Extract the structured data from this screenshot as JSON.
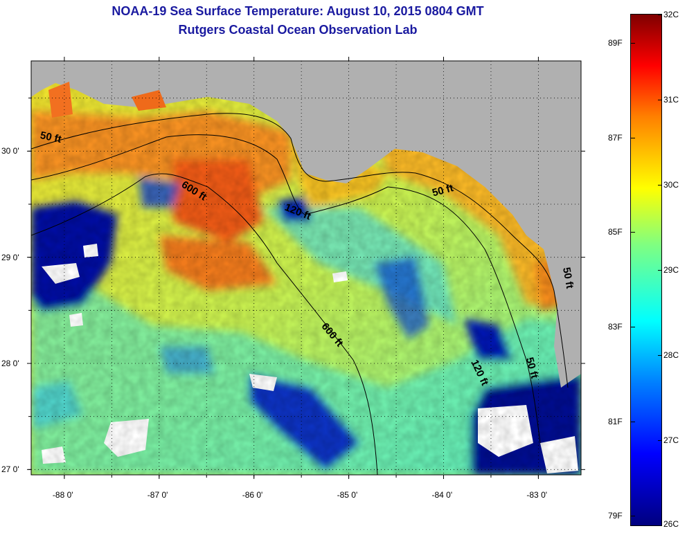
{
  "title": "NOAA-19 Sea Surface Temperature:  August 10, 2015 0804 GMT",
  "subtitle": "Rutgers Coastal Ocean Observation Lab",
  "map": {
    "lon_range": [
      -88.35,
      -82.55
    ],
    "lat_range": [
      26.95,
      30.85
    ],
    "x_ticks": [
      {
        "value": -88,
        "label": "-88 0'"
      },
      {
        "value": -87,
        "label": "-87 0'"
      },
      {
        "value": -86,
        "label": "-86 0'"
      },
      {
        "value": -85,
        "label": "-85 0'"
      },
      {
        "value": -84,
        "label": "-84 0'"
      },
      {
        "value": -83,
        "label": "-83 0'"
      }
    ],
    "y_ticks": [
      {
        "value": 30,
        "label": "30 0'"
      },
      {
        "value": 29,
        "label": "29 0'"
      },
      {
        "value": 28,
        "label": "28 0'"
      },
      {
        "value": 27,
        "label": "27 0'"
      }
    ],
    "grid": true,
    "land_color": "#b0b0b0",
    "contour_labels": [
      {
        "text": "50 ft",
        "lon": -88.15,
        "lat": 30.1,
        "angle": 12
      },
      {
        "text": "600 ft",
        "lon": -86.65,
        "lat": 29.6,
        "angle": 32
      },
      {
        "text": "120 ft",
        "lon": -85.55,
        "lat": 29.4,
        "angle": 22
      },
      {
        "text": "50 ft",
        "lon": -84.0,
        "lat": 29.6,
        "angle": -15
      },
      {
        "text": "600 ft",
        "lon": -85.2,
        "lat": 28.25,
        "angle": 50
      },
      {
        "text": "120 ft",
        "lon": -83.65,
        "lat": 27.9,
        "angle": 65
      },
      {
        "text": "50 ft",
        "lon": -83.1,
        "lat": 27.95,
        "angle": 75
      },
      {
        "text": "50 ft",
        "lon": -82.72,
        "lat": 28.8,
        "angle": 80
      }
    ]
  },
  "colorbar": {
    "celsius": [
      {
        "value": 32,
        "label": "32C"
      },
      {
        "value": 31,
        "label": "31C"
      },
      {
        "value": 30,
        "label": "30C"
      },
      {
        "value": 29,
        "label": "29C"
      },
      {
        "value": 28,
        "label": "28C"
      },
      {
        "value": 27,
        "label": "27C"
      },
      {
        "value": 26,
        "label": "26C"
      }
    ],
    "fahrenheit": [
      {
        "value": 89,
        "label": "89F"
      },
      {
        "value": 87,
        "label": "87F"
      },
      {
        "value": 85,
        "label": "85F"
      },
      {
        "value": 83,
        "label": "83F"
      },
      {
        "value": 81,
        "label": "81F"
      },
      {
        "value": 79,
        "label": "79F"
      }
    ]
  }
}
